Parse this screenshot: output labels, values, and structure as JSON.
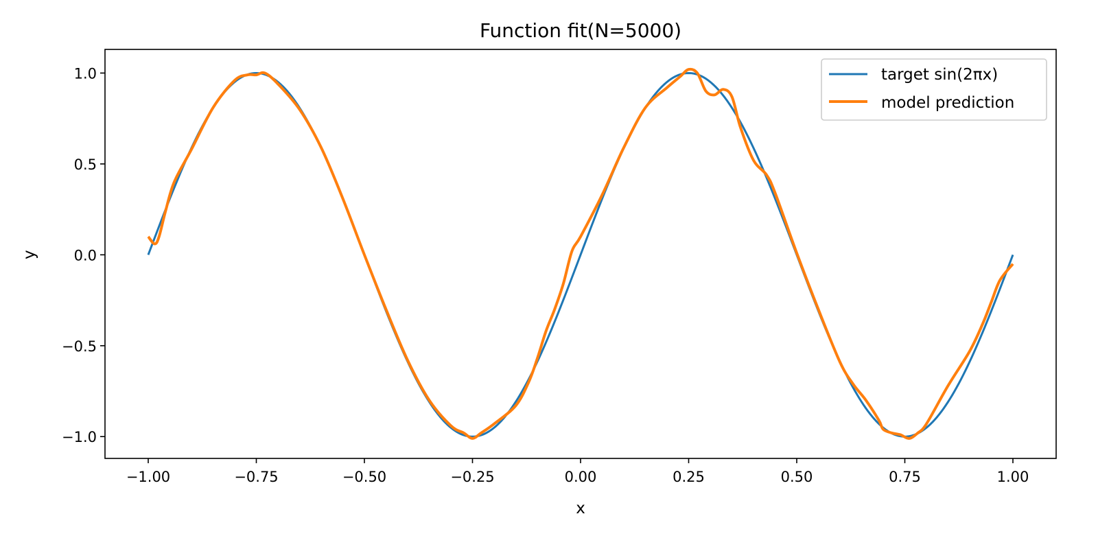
{
  "chart_data": {
    "type": "line",
    "title": "Function fit(N=5000)",
    "xlabel": "x",
    "ylabel": "y",
    "xlim": [
      -1.1,
      1.1
    ],
    "ylim": [
      -1.12,
      1.13
    ],
    "xticks": [
      -1.0,
      -0.75,
      -0.5,
      -0.25,
      0.0,
      0.25,
      0.5,
      0.75,
      1.0
    ],
    "xtick_labels": [
      "−1.00",
      "−0.75",
      "−0.50",
      "−0.25",
      "0.00",
      "0.25",
      "0.50",
      "0.75",
      "1.00"
    ],
    "yticks": [
      -1.0,
      -0.5,
      0.0,
      0.5,
      1.0
    ],
    "ytick_labels": [
      "−1.0",
      "−0.5",
      "0.0",
      "0.5",
      "1.0"
    ],
    "grid": false,
    "legend_position": "top-right",
    "series": [
      {
        "name": "target sin(2πx)",
        "color": "#1f77b4",
        "function": "sin(2*pi*x)",
        "x_range": [
          -1.0,
          1.0
        ]
      },
      {
        "name": "model prediction",
        "color": "#ff7f0e",
        "x": [
          -1.0,
          -0.985,
          -0.975,
          -0.96,
          -0.94,
          -0.9,
          -0.85,
          -0.8,
          -0.77,
          -0.75,
          -0.73,
          -0.7,
          -0.65,
          -0.6,
          -0.55,
          -0.5,
          -0.45,
          -0.4,
          -0.35,
          -0.3,
          -0.27,
          -0.25,
          -0.23,
          -0.2,
          -0.15,
          -0.12,
          -0.1,
          -0.08,
          -0.06,
          -0.04,
          -0.02,
          0.0,
          0.05,
          0.1,
          0.15,
          0.2,
          0.23,
          0.25,
          0.27,
          0.29,
          0.31,
          0.33,
          0.35,
          0.37,
          0.4,
          0.43,
          0.45,
          0.5,
          0.55,
          0.6,
          0.63,
          0.66,
          0.69,
          0.7,
          0.72,
          0.74,
          0.76,
          0.78,
          0.8,
          0.85,
          0.9,
          0.93,
          0.95,
          0.97,
          1.0
        ],
        "y": [
          0.1,
          0.06,
          0.1,
          0.24,
          0.4,
          0.58,
          0.81,
          0.96,
          0.99,
          0.99,
          1.0,
          0.94,
          0.8,
          0.59,
          0.31,
          0.0,
          -0.3,
          -0.58,
          -0.8,
          -0.94,
          -0.98,
          -1.01,
          -0.98,
          -0.93,
          -0.83,
          -0.7,
          -0.57,
          -0.42,
          -0.3,
          -0.16,
          0.02,
          0.1,
          0.33,
          0.59,
          0.81,
          0.92,
          0.98,
          1.02,
          1.0,
          0.9,
          0.88,
          0.91,
          0.87,
          0.7,
          0.52,
          0.44,
          0.34,
          0.01,
          -0.3,
          -0.59,
          -0.71,
          -0.8,
          -0.91,
          -0.96,
          -0.98,
          -0.99,
          -1.01,
          -0.98,
          -0.93,
          -0.72,
          -0.53,
          -0.38,
          -0.26,
          -0.14,
          -0.05
        ]
      }
    ]
  }
}
